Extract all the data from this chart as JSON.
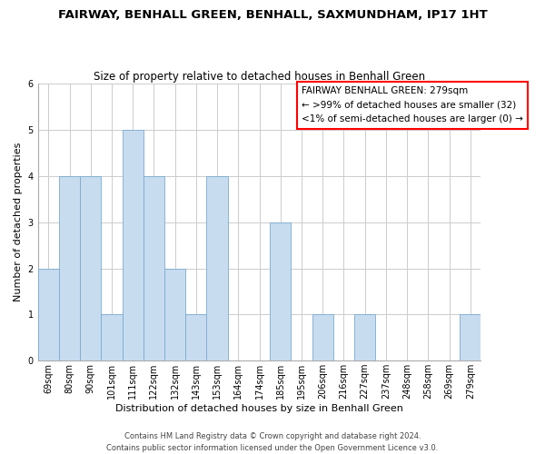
{
  "title": "FAIRWAY, BENHALL GREEN, BENHALL, SAXMUNDHAM, IP17 1HT",
  "subtitle": "Size of property relative to detached houses in Benhall Green",
  "xlabel": "Distribution of detached houses by size in Benhall Green",
  "ylabel": "Number of detached properties",
  "bar_color": "#c8dcf0",
  "bar_edge_color": "#7aabce",
  "categories": [
    "69sqm",
    "80sqm",
    "90sqm",
    "101sqm",
    "111sqm",
    "122sqm",
    "132sqm",
    "143sqm",
    "153sqm",
    "164sqm",
    "174sqm",
    "185sqm",
    "195sqm",
    "206sqm",
    "216sqm",
    "227sqm",
    "237sqm",
    "248sqm",
    "258sqm",
    "269sqm",
    "279sqm"
  ],
  "values": [
    2,
    4,
    4,
    1,
    5,
    4,
    2,
    1,
    4,
    0,
    0,
    3,
    0,
    1,
    0,
    1,
    0,
    0,
    0,
    0,
    1
  ],
  "ylim": [
    0,
    6
  ],
  "yticks": [
    0,
    1,
    2,
    3,
    4,
    5,
    6
  ],
  "legend_title": "FAIRWAY BENHALL GREEN: 279sqm",
  "legend_line2": "← >99% of detached houses are smaller (32)",
  "legend_line3": "<1% of semi-detached houses are larger (0) →",
  "legend_box_color": "white",
  "legend_box_edge_color": "red",
  "footer_line1": "Contains HM Land Registry data © Crown copyright and database right 2024.",
  "footer_line2": "Contains public sector information licensed under the Open Government Licence v3.0.",
  "title_fontsize": 9.5,
  "subtitle_fontsize": 8.5,
  "axis_label_fontsize": 8,
  "tick_fontsize": 7,
  "footer_fontsize": 6,
  "legend_fontsize": 7.5,
  "background_color": "#ffffff",
  "grid_color": "#cccccc"
}
